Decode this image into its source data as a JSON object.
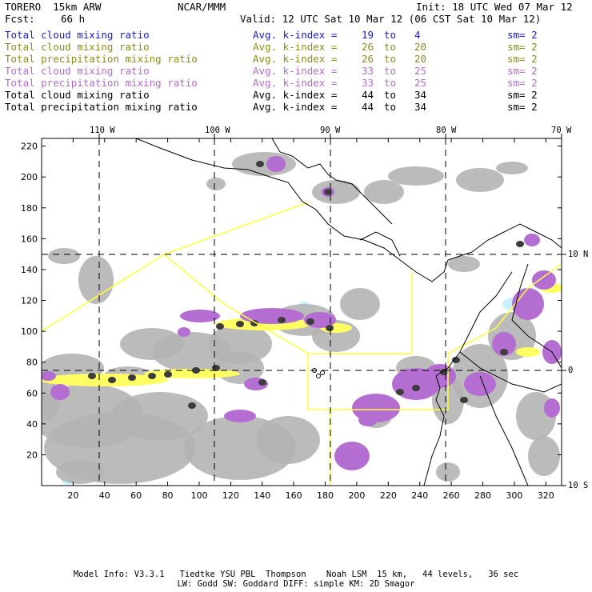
{
  "header": {
    "model": "TORERO  15km ARW",
    "org": "NCAR/MMM",
    "init": "Init: 18 UTC Wed 07 Mar 12",
    "fcst_label": "Fcst:",
    "fcst_value": "66 h",
    "valid": "Valid: 12 UTC Sat 10 Mar 12 (06 CST Sat 10 Mar 12)"
  },
  "legend": [
    {
      "field": "Total cloud mixing ratio",
      "kindex": "Avg. k-index =",
      "a": "19",
      "to": "to",
      "b": "4",
      "sm": "sm= 2",
      "color": "#1a1acc"
    },
    {
      "field": "Total cloud mixing ratio",
      "kindex": "Avg. k-index =",
      "a": "26",
      "to": "to",
      "b": "20",
      "sm": "sm= 2",
      "color": "#8c8c1a"
    },
    {
      "field": "Total precipitation mixing ratio",
      "kindex": "Avg. k-index =",
      "a": "26",
      "to": "to",
      "b": "20",
      "sm": "sm= 2",
      "color": "#8c8c1a"
    },
    {
      "field": "Total cloud mixing ratio",
      "kindex": "Avg. k-index =",
      "a": "33",
      "to": "to",
      "b": "25",
      "sm": "sm= 2",
      "color": "#b26bcc"
    },
    {
      "field": "Total precipitation mixing ratio",
      "kindex": "Avg. k-index =",
      "a": "33",
      "to": "to",
      "b": "25",
      "sm": "sm= 2",
      "color": "#b26bcc"
    },
    {
      "field": "Total cloud mixing ratio",
      "kindex": "Avg. k-index =",
      "a": "44",
      "to": "to",
      "b": "34",
      "sm": "sm= 2",
      "color": "#000000"
    },
    {
      "field": "Total precipitation mixing ratio",
      "kindex": "Avg. k-index =",
      "a": "44",
      "to": "to",
      "b": "34",
      "sm": "sm= 2",
      "color": "#000000"
    }
  ],
  "map": {
    "lon_labels": [
      "110 W",
      "100 W",
      "90 W",
      "80 W",
      "70 W"
    ],
    "lat_labels": [
      "10 N",
      "0",
      "10 S"
    ],
    "y_ticks": [
      "220",
      "200",
      "180",
      "160",
      "140",
      "120",
      "100",
      "80",
      "60",
      "40",
      "20"
    ],
    "x_ticks": [
      "20",
      "40",
      "60",
      "80",
      "100",
      "120",
      "140",
      "160",
      "180",
      "200",
      "220",
      "240",
      "260",
      "280",
      "300",
      "320"
    ],
    "x_min": 0,
    "x_max": 330,
    "y_min": 0,
    "y_max": 225,
    "colors": {
      "cloud_gray": "#b4b4b4",
      "dark_core": "#3c3c3c",
      "purple": "#b46ed2",
      "yellow": "#ffff64",
      "light_cyan": "#c8f0ff",
      "boundary_yellow": "#ffff3c",
      "coast": "#000000"
    }
  },
  "footer": {
    "line1": "Model Info: V3.3.1   Tiedtke YSU PBL  Thompson    Noah LSM  15 km,   44 levels,   36 sec",
    "line2": "LW: Godd SW: Goddard DIFF: simple KM: 2D Smagor"
  }
}
